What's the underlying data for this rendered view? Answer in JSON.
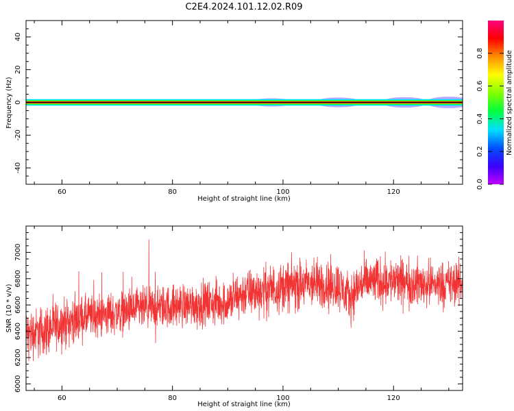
{
  "title": "C2E4.2024.101.12.02.R09",
  "colors": {
    "snr_line": "#f23333",
    "spectrum_core": "#111111",
    "colormap": [
      "#c200ff",
      "#3a00ff",
      "#0050ff",
      "#00e0ff",
      "#00ff40",
      "#80ff00",
      "#ffff00",
      "#ff9000",
      "#ff0000",
      "#ff0080"
    ]
  },
  "chart_data": [
    {
      "type": "heatmap",
      "xlabel": "Height of straight line (km)",
      "ylabel": "Frequency (Hz)",
      "xlim": [
        53.5,
        132.5
      ],
      "ylim": [
        -50,
        50
      ],
      "x_ticks": [
        60,
        80,
        100,
        120
      ],
      "y_ticks": [
        40,
        20,
        0,
        -20,
        -40
      ],
      "x_tick_labels": [
        "60",
        "80",
        "100",
        "120"
      ],
      "y_tick_labels": [
        "40",
        "20",
        "0",
        "-20",
        "-40"
      ],
      "colorbar": {
        "label": "Normalized spectral amplitude",
        "range": [
          0,
          1
        ],
        "ticks": [
          0.0,
          0.2,
          0.4,
          0.6,
          0.8
        ],
        "tick_labels": [
          "0.0",
          "0.2",
          "0.4",
          "0.6",
          "0.8"
        ]
      },
      "ridge": {
        "center_hz": 0,
        "bands": [
          {
            "halfwidth_hz": 2.0,
            "level": 0.35
          },
          {
            "halfwidth_hz": 1.4,
            "level": 0.45
          },
          {
            "halfwidth_hz": 1.0,
            "level": 0.6
          },
          {
            "halfwidth_hz": 0.6,
            "level": 0.85
          },
          {
            "halfwidth_hz": 0.25,
            "level": 1.0
          }
        ],
        "faint_spread": [
          {
            "x": 98,
            "halfwidth_hz": 2.5
          },
          {
            "x": 110,
            "halfwidth_hz": 3.0
          },
          {
            "x": 122,
            "halfwidth_hz": 3.2
          },
          {
            "x": 130,
            "halfwidth_hz": 3.5
          }
        ]
      }
    },
    {
      "type": "line",
      "xlabel": "Height of straight line (km)",
      "ylabel": "SNR (10 * v/v)",
      "xlim": [
        53.5,
        132.5
      ],
      "ylim": [
        5950,
        7200
      ],
      "x_ticks": [
        60,
        80,
        100,
        120
      ],
      "y_ticks": [
        6000,
        6200,
        6400,
        6600,
        6800,
        7000
      ],
      "x_tick_labels": [
        "60",
        "80",
        "100",
        "120"
      ],
      "y_tick_labels": [
        "6000",
        "6200",
        "6400",
        "6600",
        "6800",
        "7000"
      ],
      "trend": {
        "x": [
          53.5,
          56,
          60,
          65,
          70,
          75,
          80,
          85,
          90,
          93,
          95,
          100,
          105,
          110,
          112,
          114,
          118,
          122,
          126,
          130,
          132.5
        ],
        "mean": [
          6380,
          6390,
          6460,
          6510,
          6540,
          6570,
          6590,
          6610,
          6620,
          6690,
          6700,
          6740,
          6760,
          6750,
          6650,
          6760,
          6790,
          6770,
          6760,
          6760,
          6760
        ],
        "spread": [
          110,
          120,
          110,
          100,
          100,
          100,
          100,
          100,
          105,
          110,
          110,
          115,
          115,
          115,
          110,
          110,
          110,
          110,
          105,
          105,
          105
        ]
      }
    }
  ]
}
